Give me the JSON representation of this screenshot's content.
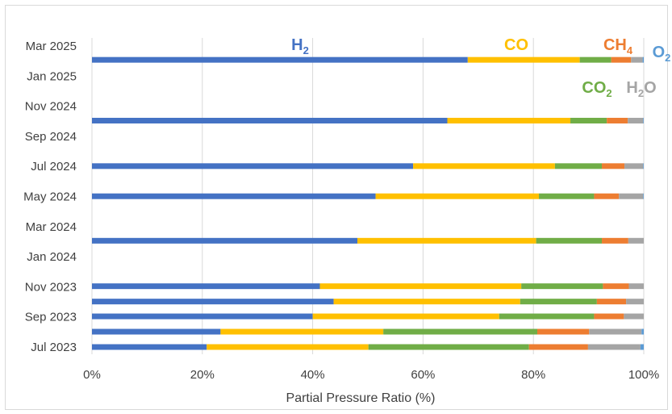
{
  "chart_data": {
    "type": "bar",
    "stacked": true,
    "orientation": "horizontal",
    "xlabel": "Partial Pressure Ratio (%)",
    "xlim": [
      0,
      100
    ],
    "x_ticks": [
      "0%",
      "20%",
      "40%",
      "60%",
      "80%",
      "100%"
    ],
    "y_ticks": [
      "Jul 2023",
      "Sep 2023",
      "Nov 2023",
      "Jan 2024",
      "Mar 2024",
      "May 2024",
      "Jul 2024",
      "Sep 2024",
      "Nov 2024",
      "Jan 2025",
      "Mar 2025"
    ],
    "y_range": [
      "2023-07-01",
      "2025-03-01"
    ],
    "grid": "vertical",
    "dates": [
      "2023-07-01",
      "2023-08-01",
      "2023-09-01",
      "2023-10-01",
      "2023-11-01",
      "2024-02-01",
      "2024-05-01",
      "2024-07-01",
      "2024-10-01",
      "2025-02-01"
    ],
    "series": [
      {
        "base": "H",
        "sub": "2",
        "color": "#4472C4",
        "values": [
          20.8,
          23.3,
          40.0,
          43.8,
          41.3,
          48.1,
          51.4,
          58.2,
          64.4,
          68.1
        ]
      },
      {
        "base": "CO",
        "sub": "",
        "color": "#FFC000",
        "values": [
          29.3,
          29.5,
          33.8,
          33.8,
          36.5,
          32.4,
          29.6,
          25.7,
          22.3,
          20.3
        ]
      },
      {
        "base": "CO",
        "sub": "2",
        "color": "#70AD47",
        "values": [
          29.1,
          27.9,
          17.2,
          13.9,
          14.8,
          11.9,
          10.0,
          8.5,
          6.6,
          5.7
        ]
      },
      {
        "base": "CH",
        "sub": "4",
        "color": "#ED7D31",
        "values": [
          10.7,
          9.4,
          5.4,
          5.3,
          4.7,
          4.8,
          4.5,
          4.1,
          3.8,
          3.6
        ]
      },
      {
        "base": "H",
        "sub": "2",
        "tail": "O",
        "color": "#A5A5A5",
        "values": [
          9.5,
          9.5,
          3.6,
          3.2,
          2.7,
          2.8,
          4.4,
          3.4,
          2.8,
          2.1
        ]
      },
      {
        "base": "O",
        "sub": "2",
        "color": "#5B9BD5",
        "values": [
          0.6,
          0.4,
          0.0,
          0.0,
          0.0,
          0.0,
          0.1,
          0.1,
          0.1,
          0.2
        ]
      }
    ],
    "legend_placement": "labels-in-plot-top"
  }
}
